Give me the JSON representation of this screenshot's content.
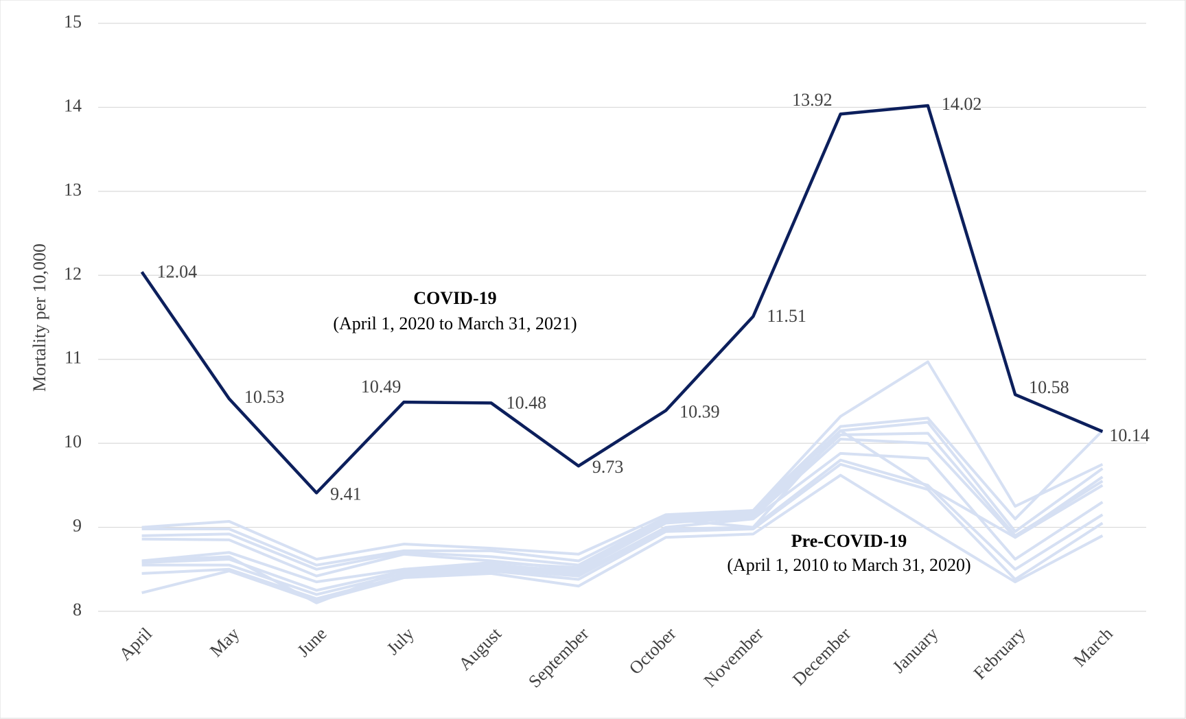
{
  "chart_data": {
    "type": "line",
    "y_label": "Mortality per 10,000",
    "categories": [
      "April",
      "May",
      "June",
      "July",
      "August",
      "September",
      "October",
      "November",
      "December",
      "January",
      "February",
      "March"
    ],
    "ylim": [
      8,
      15
    ],
    "yticks": [
      8,
      9,
      10,
      11,
      12,
      13,
      14,
      15
    ],
    "grid": true,
    "series": [
      {
        "color": "#d6e0f3",
        "values": [
          9.0,
          9.07,
          8.62,
          8.8,
          8.75,
          8.68,
          9.15,
          9.2,
          10.32,
          10.97,
          9.25,
          9.75
        ]
      },
      {
        "color": "#d6e0f3",
        "values": [
          8.98,
          8.98,
          8.55,
          8.72,
          8.72,
          8.6,
          9.12,
          9.2,
          10.2,
          10.3,
          9.1,
          10.15
        ]
      },
      {
        "color": "#d6e0f3",
        "values": [
          8.9,
          8.92,
          8.5,
          8.7,
          8.65,
          8.55,
          9.1,
          9.18,
          10.15,
          10.25,
          8.95,
          9.7
        ]
      },
      {
        "color": "#d6e0f3",
        "values": [
          8.86,
          8.85,
          8.42,
          8.68,
          8.6,
          8.5,
          9.08,
          9.15,
          10.1,
          10.12,
          8.9,
          9.55
        ]
      },
      {
        "color": "#d6e0f3",
        "values": [
          8.6,
          8.7,
          8.35,
          8.5,
          8.55,
          8.48,
          9.05,
          9.12,
          10.05,
          10.0,
          8.88,
          9.5
        ]
      },
      {
        "color": "#d6e0f3",
        "values": [
          8.58,
          8.62,
          8.25,
          8.48,
          8.52,
          8.45,
          9.0,
          9.1,
          9.88,
          9.82,
          8.62,
          9.3
        ]
      },
      {
        "color": "#d6e0f3",
        "values": [
          8.55,
          8.55,
          8.2,
          8.45,
          8.5,
          8.42,
          8.98,
          9.0,
          9.8,
          9.5,
          8.5,
          9.15
        ]
      },
      {
        "color": "#d6e0f3",
        "values": [
          8.45,
          8.5,
          8.15,
          8.42,
          8.48,
          8.38,
          8.95,
          8.98,
          9.75,
          9.45,
          8.38,
          9.05
        ]
      },
      {
        "color": "#d6e0f3",
        "values": [
          8.22,
          8.48,
          8.12,
          8.4,
          8.45,
          8.3,
          8.88,
          8.92,
          9.62,
          8.98,
          8.35,
          8.9
        ]
      },
      {
        "color": "#d6e0f3",
        "values": [
          8.6,
          8.65,
          8.1,
          8.5,
          8.58,
          8.52,
          9.1,
          9.0,
          10.15,
          9.48,
          8.88,
          9.6
        ]
      },
      {
        "color": "#0c1f5c",
        "values": [
          12.04,
          10.53,
          9.41,
          10.49,
          10.48,
          9.73,
          10.39,
          11.51,
          13.92,
          14.02,
          10.58,
          10.14
        ],
        "data_labels": true
      }
    ],
    "annotations": [
      {
        "title": "COVID-19",
        "subtitle": "(April 1, 2020 to March 31, 2021)"
      },
      {
        "title": "Pre-COVID-19",
        "subtitle": "(April 1, 2010 to March 31, 2020)"
      }
    ]
  }
}
